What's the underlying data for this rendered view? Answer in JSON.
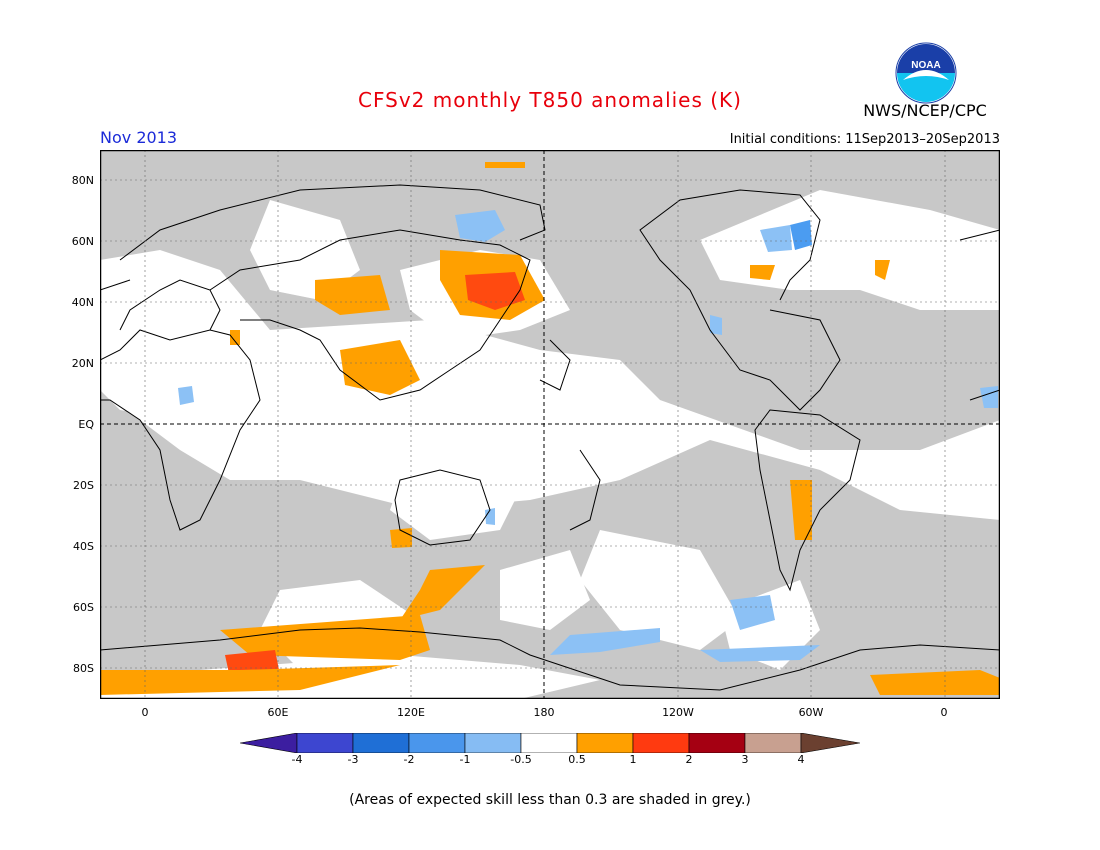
{
  "header": {
    "title": "CFSv2 monthly T850 anomalies (K)",
    "agency": "NWS/NCEP/CPC",
    "logo_text": "NOAA",
    "month": "Nov 2013",
    "initial_conditions": "Initial conditions: 11Sep2013–20Sep2013"
  },
  "map": {
    "lat_labels": [
      "80N",
      "60N",
      "40N",
      "20N",
      "EQ",
      "20S",
      "40S",
      "60S",
      "80S"
    ],
    "lon_labels": [
      "0",
      "60E",
      "120E",
      "180",
      "120W",
      "60W",
      "0"
    ],
    "colors": {
      "grey_low_skill": "#c8c8c8",
      "blue_light": "#8cc1f5",
      "blue": "#4b9cf1",
      "orange": "#ffa000",
      "red_orange": "#ff4a10",
      "coast": "#000000"
    }
  },
  "colorbar": {
    "labels": [
      "-4",
      "-3",
      "-2",
      "-1",
      "-0.5",
      "0.5",
      "1",
      "2",
      "3",
      "4"
    ],
    "colors": [
      "#3c1ea0",
      "#3d46d0",
      "#1f6fd6",
      "#4a96ec",
      "#86bcf3",
      "#ffffff",
      "#ffa000",
      "#ff3a10",
      "#a50012",
      "#c8a090",
      "#6b4030"
    ]
  },
  "footer": {
    "note": "(Areas of expected skill less than 0.3 are shaded in grey.)"
  }
}
